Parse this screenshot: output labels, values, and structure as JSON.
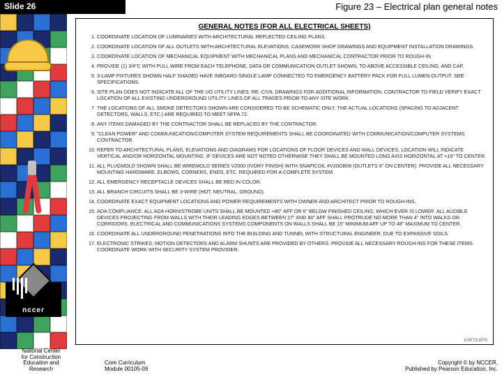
{
  "slide_label": "Slide 26",
  "figure_title": "Figure 23 – Electrical plan general notes",
  "doc_header": "GENERAL NOTES (FOR ALL ELECTRICAL SHEETS)",
  "notes": [
    "Coordinate location of luminaries with architectural reflected ceiling plans.",
    "Coordinate location of all outlets with architectural elevations, casework shop drawings and equipment installation drawings.",
    "Coordinate location of mechanical equipment with mechanical plans and mechanical contractor prior to rough-in.",
    "Provide (1) 3/4\"C with pull wire from each telephone, data or communication outlet shown, to above accessible ceiling, and cap.",
    "3-lamp fixtures shown half shaded have inboard single lamp connected to emergency battery pack for full lumen output. See specifications.",
    "Site plan does not indicate all of the UG utility lines. Re: civil drawings for additional information. Contractor to field verify exact location of all existing underground utility lines of all trades prior to any site work.",
    "The locations of all smoke detectors shown are considered to be schematic only. The actual locations (spacing to adjacent detectors, walls, etc.) are required to meet NFPA 72.",
    "Any items damaged by the contractor shall be replaced by the contractor.",
    "\"Clean power\" and communication/computer system requirements shall be coordinated with communication/computer systems contractor.",
    "Refer to architectural plans, elevations and diagrams for locations of floor devices and wall devices. Location will indicate vertical and/or horizontal mounting. If devices are not noted otherwise they shall be mounted long axis horizontal at +16\" to center.",
    "All plugmold shown shall be Wiremold series V2000 (ivory finish) with Snapicoil #V20GB06 (outlets 6\" on center). Provide all necessary mounting hardware, elbows, corners, ends, etc. required for a complete system.",
    "All emergency receptacle devices shall be red in color.",
    "All branch circuits shall be 3-wire (hot, neutral, ground).",
    "Coordinate exact equipment locations and power requirements with owner and architect prior to rough-ins.",
    "ADA compliance: all ADA horn/strobe units shall be mounted +80\" AFF or 6\" below finished ceiling, which ever is lower. All audible devices projecting from walls with their leading edges between 27\" and 80\" AFF shall protrude no more than 4\" into walks or corridors. Electrical and communications systems components on walls shall be 15\" minimum AFF up to 48\" maximum to center.",
    "Coordinate all underground penetrations into the building and tunnel with structural engineer, due to expansive soils.",
    "Electronic strikes, motion detectors and alarm shunts are provided by others. Provide all necessary rough-ins for these items. Coordinate work with security system provider."
  ],
  "doc_footnote": "105F23.EPS",
  "nccer_label": "nccer",
  "footer_left_lines": [
    "National Center",
    "for Construction",
    "Education and",
    "Research"
  ],
  "footer_mid_lines": [
    "Core Curriculum",
    "Module 00105-09"
  ],
  "footer_right_lines": [
    "Copyright © by NCCER,",
    "Published by Pearson Education, Inc."
  ],
  "colors": {
    "title_bg": "#000000",
    "title_fg": "#ffffff",
    "doc_border": "#000000",
    "sidebar_bg": "#1a2a6c"
  }
}
